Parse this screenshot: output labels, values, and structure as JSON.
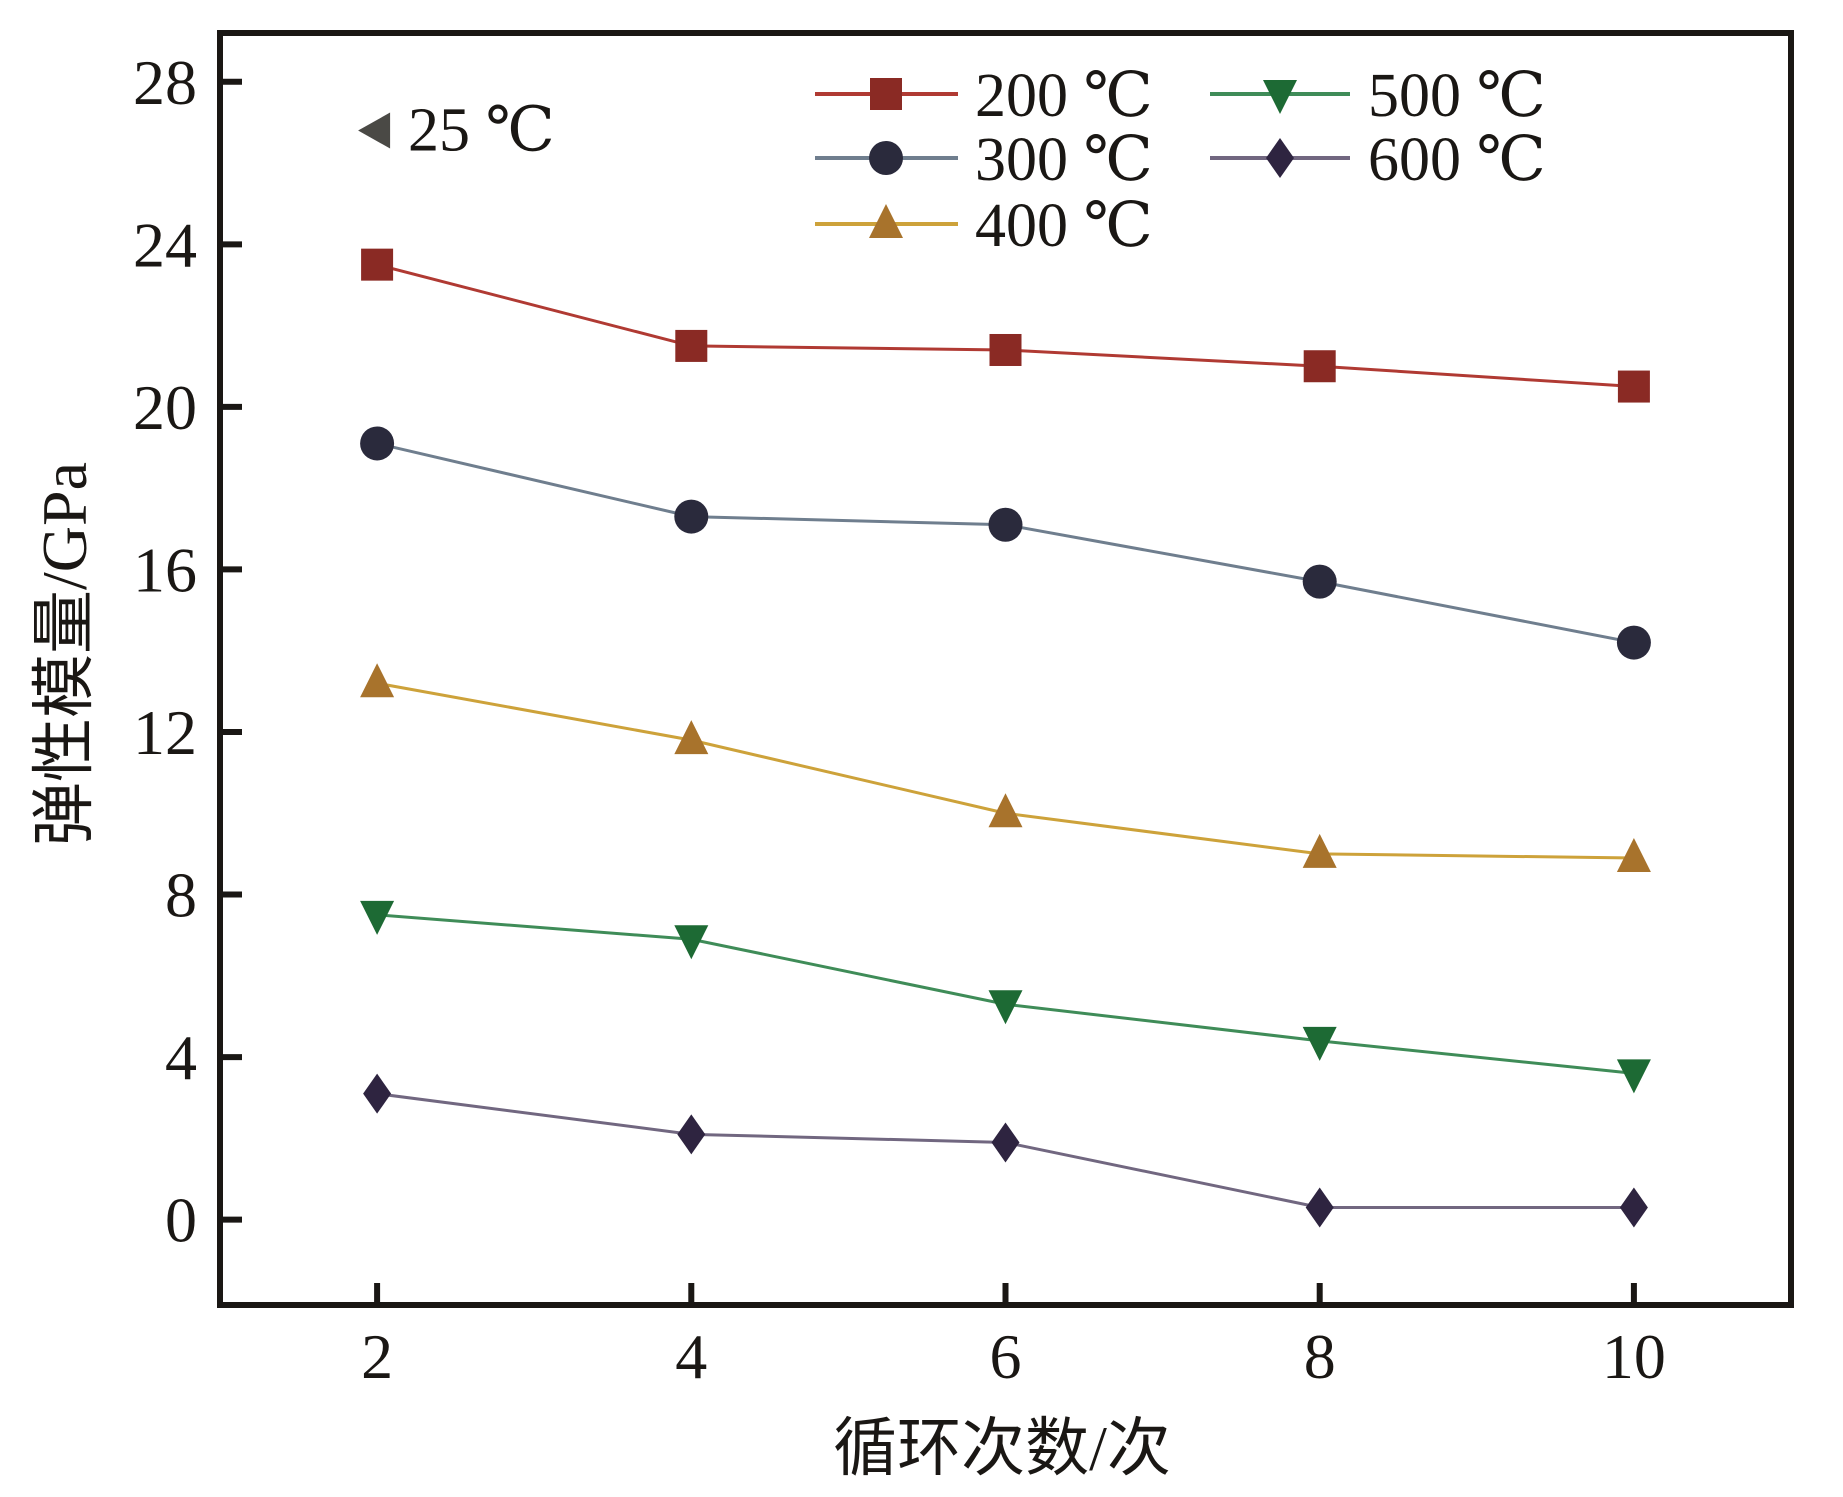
{
  "chart_data": {
    "type": "line",
    "title": "",
    "xlabel": "循环次数/次",
    "ylabel": "弹性模量/GPa",
    "xlim": [
      1,
      11
    ],
    "ylim": [
      -2.1,
      29.2
    ],
    "x_ticks": [
      2,
      4,
      6,
      8,
      10
    ],
    "x_tick_labels": [
      "2",
      "4",
      "6",
      "8",
      "10"
    ],
    "y_ticks": [
      0,
      4,
      8,
      12,
      16,
      20,
      24,
      28
    ],
    "y_tick_labels": [
      "0",
      "4",
      "8",
      "12",
      "16",
      "20",
      "24",
      "28"
    ],
    "grid": false,
    "legend_position": "top-right",
    "annotation": {
      "label": "25 ℃",
      "marker": "triangle-left",
      "color": "#4a4945",
      "x": 2,
      "y": 26.8
    },
    "x": [
      2,
      4,
      6,
      8,
      10
    ],
    "series": [
      {
        "name": "200 ℃",
        "marker": "square",
        "marker_color": "#8a2a24",
        "line_color": "#b03a33",
        "values": [
          23.5,
          21.5,
          21.4,
          21.0,
          20.5
        ]
      },
      {
        "name": "300 ℃",
        "marker": "circle",
        "marker_color": "#2a2a3c",
        "line_color": "#6f7e8e",
        "values": [
          19.1,
          17.3,
          17.1,
          15.7,
          14.2
        ]
      },
      {
        "name": "400 ℃",
        "marker": "triangle-up",
        "marker_color": "#a8732c",
        "line_color": "#cda23a",
        "values": [
          13.2,
          11.8,
          10.0,
          9.0,
          8.9
        ]
      },
      {
        "name": "500 ℃",
        "marker": "triangle-down",
        "marker_color": "#1d6a34",
        "line_color": "#3f8c58",
        "values": [
          7.5,
          6.9,
          5.3,
          4.4,
          3.6
        ]
      },
      {
        "name": "600 ℃",
        "marker": "diamond",
        "marker_color": "#2e2440",
        "line_color": "#716780",
        "values": [
          3.1,
          2.1,
          1.9,
          0.3,
          0.3
        ]
      }
    ]
  }
}
